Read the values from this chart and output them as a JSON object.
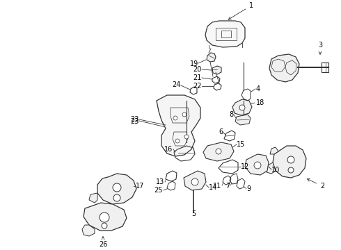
{
  "bg_color": "#ffffff",
  "line_color": "#333333",
  "text_color": "#000000",
  "fig_width": 4.9,
  "fig_height": 3.6,
  "dpi": 100,
  "label_fontsize": 7,
  "small_fontsize": 6.5
}
